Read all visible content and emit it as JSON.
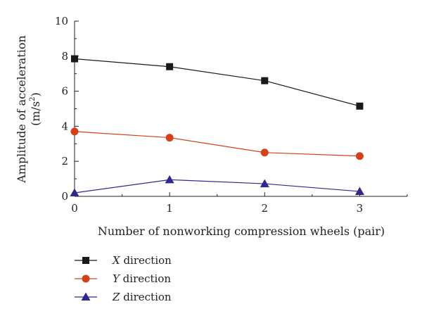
{
  "chart_data": {
    "type": "line",
    "title": "",
    "xlabel": "Number of nonworking compression wheels (pair)",
    "ylabel_line1": "Amplitude of acceleration",
    "ylabel_line2_base": "(m/s",
    "ylabel_line2_sup": "2",
    "ylabel_line2_end": ")",
    "x": [
      0,
      1,
      2,
      3
    ],
    "xlim": [
      0,
      3.5
    ],
    "ylim": [
      0,
      10
    ],
    "xticks": [
      "0",
      "1",
      "2",
      "3"
    ],
    "yticks": [
      "0",
      "2",
      "4",
      "6",
      "8",
      "10"
    ],
    "grid": false,
    "legend_placement": "bottom-left",
    "series": [
      {
        "name": "direction",
        "var": "X",
        "marker": "square",
        "color": "#1a1a1a",
        "values": [
          7.85,
          7.4,
          6.6,
          5.15
        ]
      },
      {
        "name": "direction",
        "var": "Y",
        "marker": "circle",
        "color": "#d4401a",
        "values": [
          3.7,
          3.35,
          2.5,
          2.3
        ]
      },
      {
        "name": "direction",
        "var": "Z",
        "marker": "triangle",
        "color": "#2e2a8c",
        "values": [
          0.2,
          0.95,
          0.72,
          0.28
        ]
      }
    ]
  }
}
